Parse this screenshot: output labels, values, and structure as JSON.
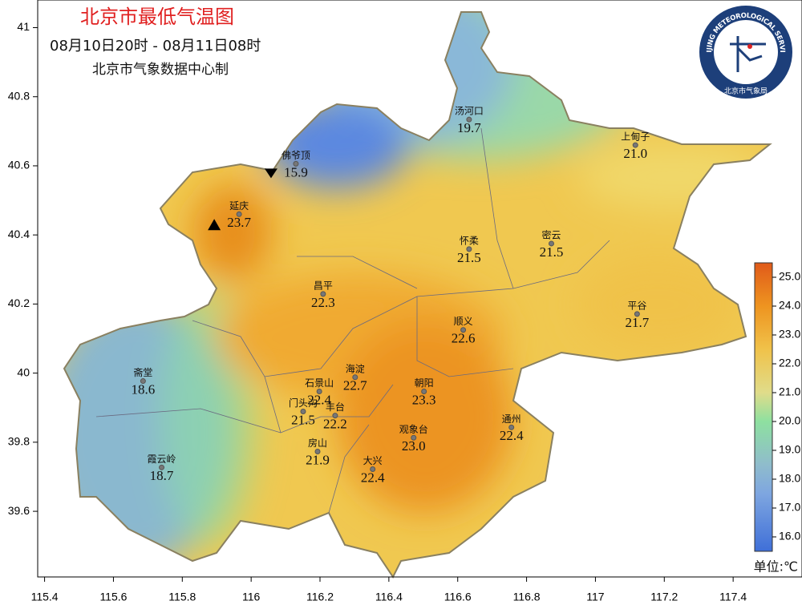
{
  "header": {
    "title": "北京市最低气温图",
    "period": "08月10日20时 - 08月11日08时",
    "source": "北京市气象数据中心制"
  },
  "logo": {
    "text_en": "BEIJING METEOROLOGICAL SERVICE",
    "text_cn": "北京市气象局"
  },
  "axes": {
    "xlim": [
      115.38,
      117.6
    ],
    "ylim": [
      39.41,
      41.08
    ],
    "xticks": [
      115.4,
      115.6,
      115.8,
      116,
      116.2,
      116.4,
      116.6,
      116.8,
      117,
      117.2,
      117.4
    ],
    "yticks": [
      39.6,
      39.8,
      40,
      40.2,
      40.4,
      40.6,
      40.8,
      41
    ]
  },
  "stations": [
    {
      "name": "汤河口",
      "lon": 116.633,
      "lat": 40.734,
      "value": 19.7,
      "label": "19.7"
    },
    {
      "name": "上甸子",
      "lon": 117.116,
      "lat": 40.66,
      "value": 21.0,
      "label": "21.0"
    },
    {
      "name": "佛爷顶",
      "lon": 116.13,
      "lat": 40.606,
      "value": 15.9,
      "label": "15.9"
    },
    {
      "name": "延庆",
      "lon": 115.965,
      "lat": 40.46,
      "value": 23.7,
      "label": "23.7"
    },
    {
      "name": "怀柔",
      "lon": 116.633,
      "lat": 40.359,
      "value": 21.5,
      "label": "21.5"
    },
    {
      "name": "密云",
      "lon": 116.872,
      "lat": 40.375,
      "value": 21.5,
      "label": "21.5"
    },
    {
      "name": "昌平",
      "lon": 116.209,
      "lat": 40.229,
      "value": 22.3,
      "label": "22.3"
    },
    {
      "name": "平谷",
      "lon": 117.121,
      "lat": 40.171,
      "value": 21.7,
      "label": "21.7"
    },
    {
      "name": "顺义",
      "lon": 116.616,
      "lat": 40.125,
      "value": 22.6,
      "label": "22.6"
    },
    {
      "name": "海淀",
      "lon": 116.302,
      "lat": 39.988,
      "value": 22.7,
      "label": "22.7"
    },
    {
      "name": "朝阳",
      "lon": 116.502,
      "lat": 39.947,
      "value": 23.3,
      "label": "23.3"
    },
    {
      "name": "石景山",
      "lon": 116.198,
      "lat": 39.947,
      "value": 22.4,
      "label": "22.4"
    },
    {
      "name": "门头沟",
      "lon": 116.151,
      "lat": 39.889,
      "value": 21.5,
      "label": "21.5"
    },
    {
      "name": "丰台",
      "lon": 116.244,
      "lat": 39.877,
      "value": 22.2,
      "label": "22.2"
    },
    {
      "name": "通州",
      "lon": 116.756,
      "lat": 39.843,
      "value": 22.4,
      "label": "22.4"
    },
    {
      "name": "观象台",
      "lon": 116.472,
      "lat": 39.813,
      "value": 23.0,
      "label": "23.0"
    },
    {
      "name": "房山",
      "lon": 116.193,
      "lat": 39.773,
      "value": 21.9,
      "label": "21.9"
    },
    {
      "name": "大兴",
      "lon": 116.353,
      "lat": 39.722,
      "value": 22.4,
      "label": "22.4"
    },
    {
      "name": "斋堂",
      "lon": 115.686,
      "lat": 39.977,
      "value": 18.6,
      "label": "18.6"
    },
    {
      "name": "霞云岭",
      "lon": 115.74,
      "lat": 39.727,
      "value": 18.7,
      "label": "18.7"
    }
  ],
  "colorbar": {
    "range": [
      15.5,
      25.5
    ],
    "ticks": [
      {
        "value": 16,
        "label": "16.0"
      },
      {
        "value": 17,
        "label": "17.0"
      },
      {
        "value": 18,
        "label": "18.0"
      },
      {
        "value": 19,
        "label": "19.0"
      },
      {
        "value": 20,
        "label": "20.0"
      },
      {
        "value": 21,
        "label": "21.0"
      },
      {
        "value": 22,
        "label": "22.0"
      },
      {
        "value": 23,
        "label": "23.0"
      },
      {
        "value": 24,
        "label": "24.0"
      },
      {
        "value": 25,
        "label": "25.0"
      }
    ],
    "unit": "单位:℃"
  }
}
